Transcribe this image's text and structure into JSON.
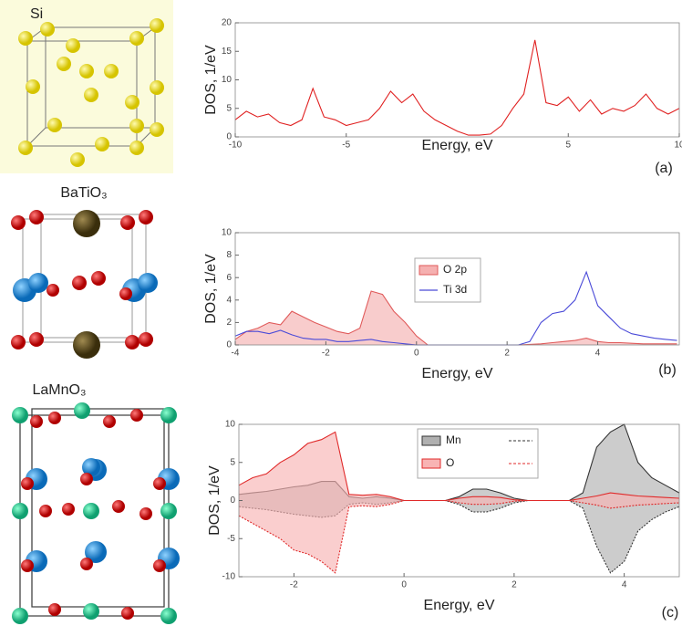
{
  "structures": [
    {
      "label": "Si"
    },
    {
      "label": "BaTiO₃"
    },
    {
      "label": "LaMnO₃"
    }
  ],
  "chart_data": [
    {
      "type": "line",
      "xlabel": "Energy, eV",
      "ylabel": "DOS, 1/eV",
      "panel_label": "(a)",
      "x": [
        -10,
        -9.5,
        -9,
        -8.5,
        -8,
        -7.5,
        -7,
        -6.5,
        -6,
        -5.5,
        -5,
        -4.5,
        -4,
        -3.5,
        -3,
        -2.5,
        -2,
        -1.5,
        -1,
        -0.5,
        0,
        0.5,
        1,
        1.5,
        2,
        2.5,
        3,
        3.5,
        4,
        4.5,
        5,
        5.5,
        6,
        6.5,
        7,
        7.5,
        8,
        8.5,
        9,
        9.5,
        10
      ],
      "xlim": [
        -10,
        10
      ],
      "xticks": [
        -10,
        -5,
        5,
        10
      ],
      "ylim": [
        0,
        20
      ],
      "yticks": [
        0,
        5,
        10,
        15,
        20
      ],
      "series": [
        {
          "color": "#e02020",
          "values": [
            3,
            4.5,
            3.5,
            4,
            2.5,
            2,
            3,
            8.5,
            3.5,
            3,
            2,
            2.5,
            3,
            5,
            8,
            6,
            7.5,
            4.5,
            3,
            2,
            1,
            0.3,
            0.3,
            0.5,
            2,
            5,
            7.5,
            17,
            6,
            5.5,
            7,
            4.5,
            6.5,
            4,
            5,
            4.5,
            5.5,
            7.5,
            5,
            4,
            5
          ]
        }
      ]
    },
    {
      "type": "line",
      "xlabel": "Energy, eV",
      "ylabel": "DOS, 1/eV",
      "panel_label": "(b)",
      "legend": true,
      "x": [
        -4,
        -3.75,
        -3.5,
        -3.25,
        -3,
        -2.75,
        -2.5,
        -2.25,
        -2,
        -1.75,
        -1.5,
        -1.25,
        -1,
        -0.75,
        -0.5,
        -0.25,
        0,
        0.25,
        0.5,
        0.75,
        1,
        1.25,
        1.5,
        1.75,
        2,
        2.25,
        2.5,
        2.75,
        3,
        3.25,
        3.5,
        3.75,
        4,
        4.25,
        4.5,
        4.75,
        5,
        5.25,
        5.5,
        5.75
      ],
      "xlim": [
        -4,
        5.8
      ],
      "xticks": [
        -4,
        -2,
        0,
        2,
        4
      ],
      "ylim": [
        0,
        10
      ],
      "yticks": [
        0,
        2,
        4,
        6,
        8,
        10
      ],
      "series": [
        {
          "name": "O 2p",
          "color": "#e05a5a",
          "fill": "#f5b0b0",
          "values": [
            0.5,
            1.2,
            1.5,
            2.0,
            1.8,
            3.0,
            2.5,
            2.0,
            1.6,
            1.2,
            1.0,
            1.5,
            4.8,
            4.5,
            3.0,
            2.0,
            0.8,
            0,
            0,
            0,
            0,
            0,
            0,
            0,
            0,
            0,
            0.05,
            0.1,
            0.2,
            0.3,
            0.4,
            0.6,
            0.3,
            0.2,
            0.2,
            0.15,
            0.1,
            0.1,
            0.1,
            0.1
          ]
        },
        {
          "name": "Ti 3d",
          "color": "#4a4ad8",
          "values": [
            0.8,
            1.2,
            1.2,
            1.0,
            1.3,
            0.9,
            0.6,
            0.5,
            0.5,
            0.3,
            0.3,
            0.4,
            0.5,
            0.3,
            0.2,
            0.1,
            0,
            0,
            0,
            0,
            0,
            0,
            0,
            0,
            0,
            0,
            0.3,
            2.0,
            2.8,
            3.0,
            4.0,
            6.5,
            3.5,
            2.5,
            1.5,
            1.0,
            0.8,
            0.6,
            0.5,
            0.4
          ]
        }
      ]
    },
    {
      "type": "line",
      "xlabel": "Energy, eV",
      "ylabel": "DOS, 1/eV",
      "panel_label": "(c)",
      "legend": true,
      "x": [
        -3,
        -2.75,
        -2.5,
        -2.25,
        -2,
        -1.75,
        -1.5,
        -1.25,
        -1,
        -0.75,
        -0.5,
        -0.25,
        0,
        0.25,
        0.5,
        0.75,
        1,
        1.25,
        1.5,
        1.75,
        2,
        2.25,
        2.5,
        2.75,
        3,
        3.25,
        3.5,
        3.75,
        4,
        4.25,
        4.5,
        4.75,
        5
      ],
      "xlim": [
        -3,
        5
      ],
      "xticks": [
        -2,
        0,
        2,
        4
      ],
      "ylim": [
        -10,
        10
      ],
      "yticks": [
        -10,
        -5,
        0,
        5,
        10
      ],
      "series": [
        {
          "name": "Mn",
          "color": "#333333",
          "fill": "#b0b0b0",
          "down_dash": true,
          "values": [
            0.8,
            1.0,
            1.2,
            1.5,
            1.8,
            2.0,
            2.5,
            2.5,
            0.5,
            0.3,
            0.5,
            0.3,
            0,
            0,
            0,
            0,
            0.5,
            1.5,
            1.5,
            1.0,
            0.3,
            0,
            0,
            0,
            0,
            1.0,
            7.0,
            9.0,
            10.0,
            5.0,
            3.0,
            2.0,
            1.0
          ],
          "values_down": [
            -0.8,
            -1.0,
            -1.2,
            -1.5,
            -1.8,
            -2.0,
            -2.2,
            -2.0,
            -0.5,
            -0.3,
            -0.5,
            -0.3,
            0,
            0,
            0,
            0,
            -0.5,
            -1.5,
            -1.5,
            -1.0,
            -0.3,
            0,
            0,
            0,
            0,
            -1.0,
            -6.0,
            -9.5,
            -8.0,
            -4.0,
            -2.5,
            -1.5,
            -0.8
          ]
        },
        {
          "name": "O",
          "color": "#e02a2a",
          "fill": "#f8b4b4",
          "down_dash": true,
          "values": [
            2.0,
            3.0,
            3.5,
            5.0,
            6.0,
            7.5,
            8.0,
            9.0,
            0.8,
            0.7,
            0.8,
            0.5,
            0,
            0,
            0,
            0,
            0.3,
            0.5,
            0.5,
            0.4,
            0.1,
            0,
            0,
            0,
            0,
            0.3,
            0.6,
            1.0,
            0.8,
            0.6,
            0.5,
            0.4,
            0.3
          ],
          "values_down": [
            -2.0,
            -3.0,
            -4.0,
            -5.0,
            -6.5,
            -7.0,
            -8.0,
            -9.5,
            -0.8,
            -0.7,
            -0.8,
            -0.5,
            0,
            0,
            0,
            0,
            -0.3,
            -0.5,
            -0.5,
            -0.4,
            -0.1,
            0,
            0,
            0,
            0,
            -0.3,
            -0.6,
            -1.0,
            -0.8,
            -0.6,
            -0.5,
            -0.4,
            -0.3
          ]
        }
      ]
    }
  ]
}
